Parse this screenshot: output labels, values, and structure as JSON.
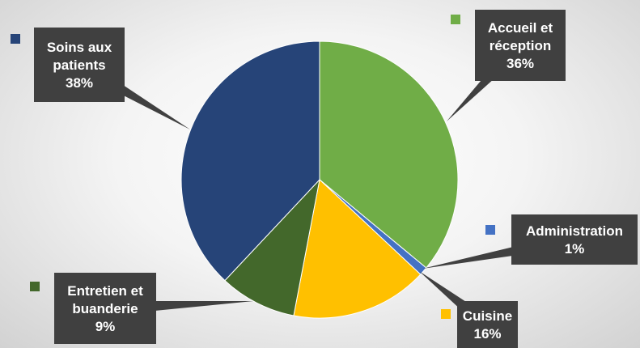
{
  "chart_data": {
    "type": "pie",
    "slices": [
      {
        "label_lines": [
          "Accueil et",
          "réception"
        ],
        "pct_text": "36%",
        "value": 36,
        "color": "#70ad47"
      },
      {
        "label_lines": [
          "Administration"
        ],
        "pct_text": "1%",
        "value": 1,
        "color": "#4472c4"
      },
      {
        "label_lines": [
          "Cuisine"
        ],
        "pct_text": "16%",
        "value": 16,
        "color": "#ffc000"
      },
      {
        "label_lines": [
          "Entretien et",
          "buanderie"
        ],
        "pct_text": "9%",
        "value": 9,
        "color": "#43682b"
      },
      {
        "label_lines": [
          "Soins aux",
          "patients"
        ],
        "pct_text": "38%",
        "value": 38,
        "color": "#264478"
      }
    ],
    "start_angle_deg": 0,
    "direction": "clockwise",
    "label_box_color": "#404040",
    "label_text_color": "#ffffff",
    "legend_markers": true
  }
}
